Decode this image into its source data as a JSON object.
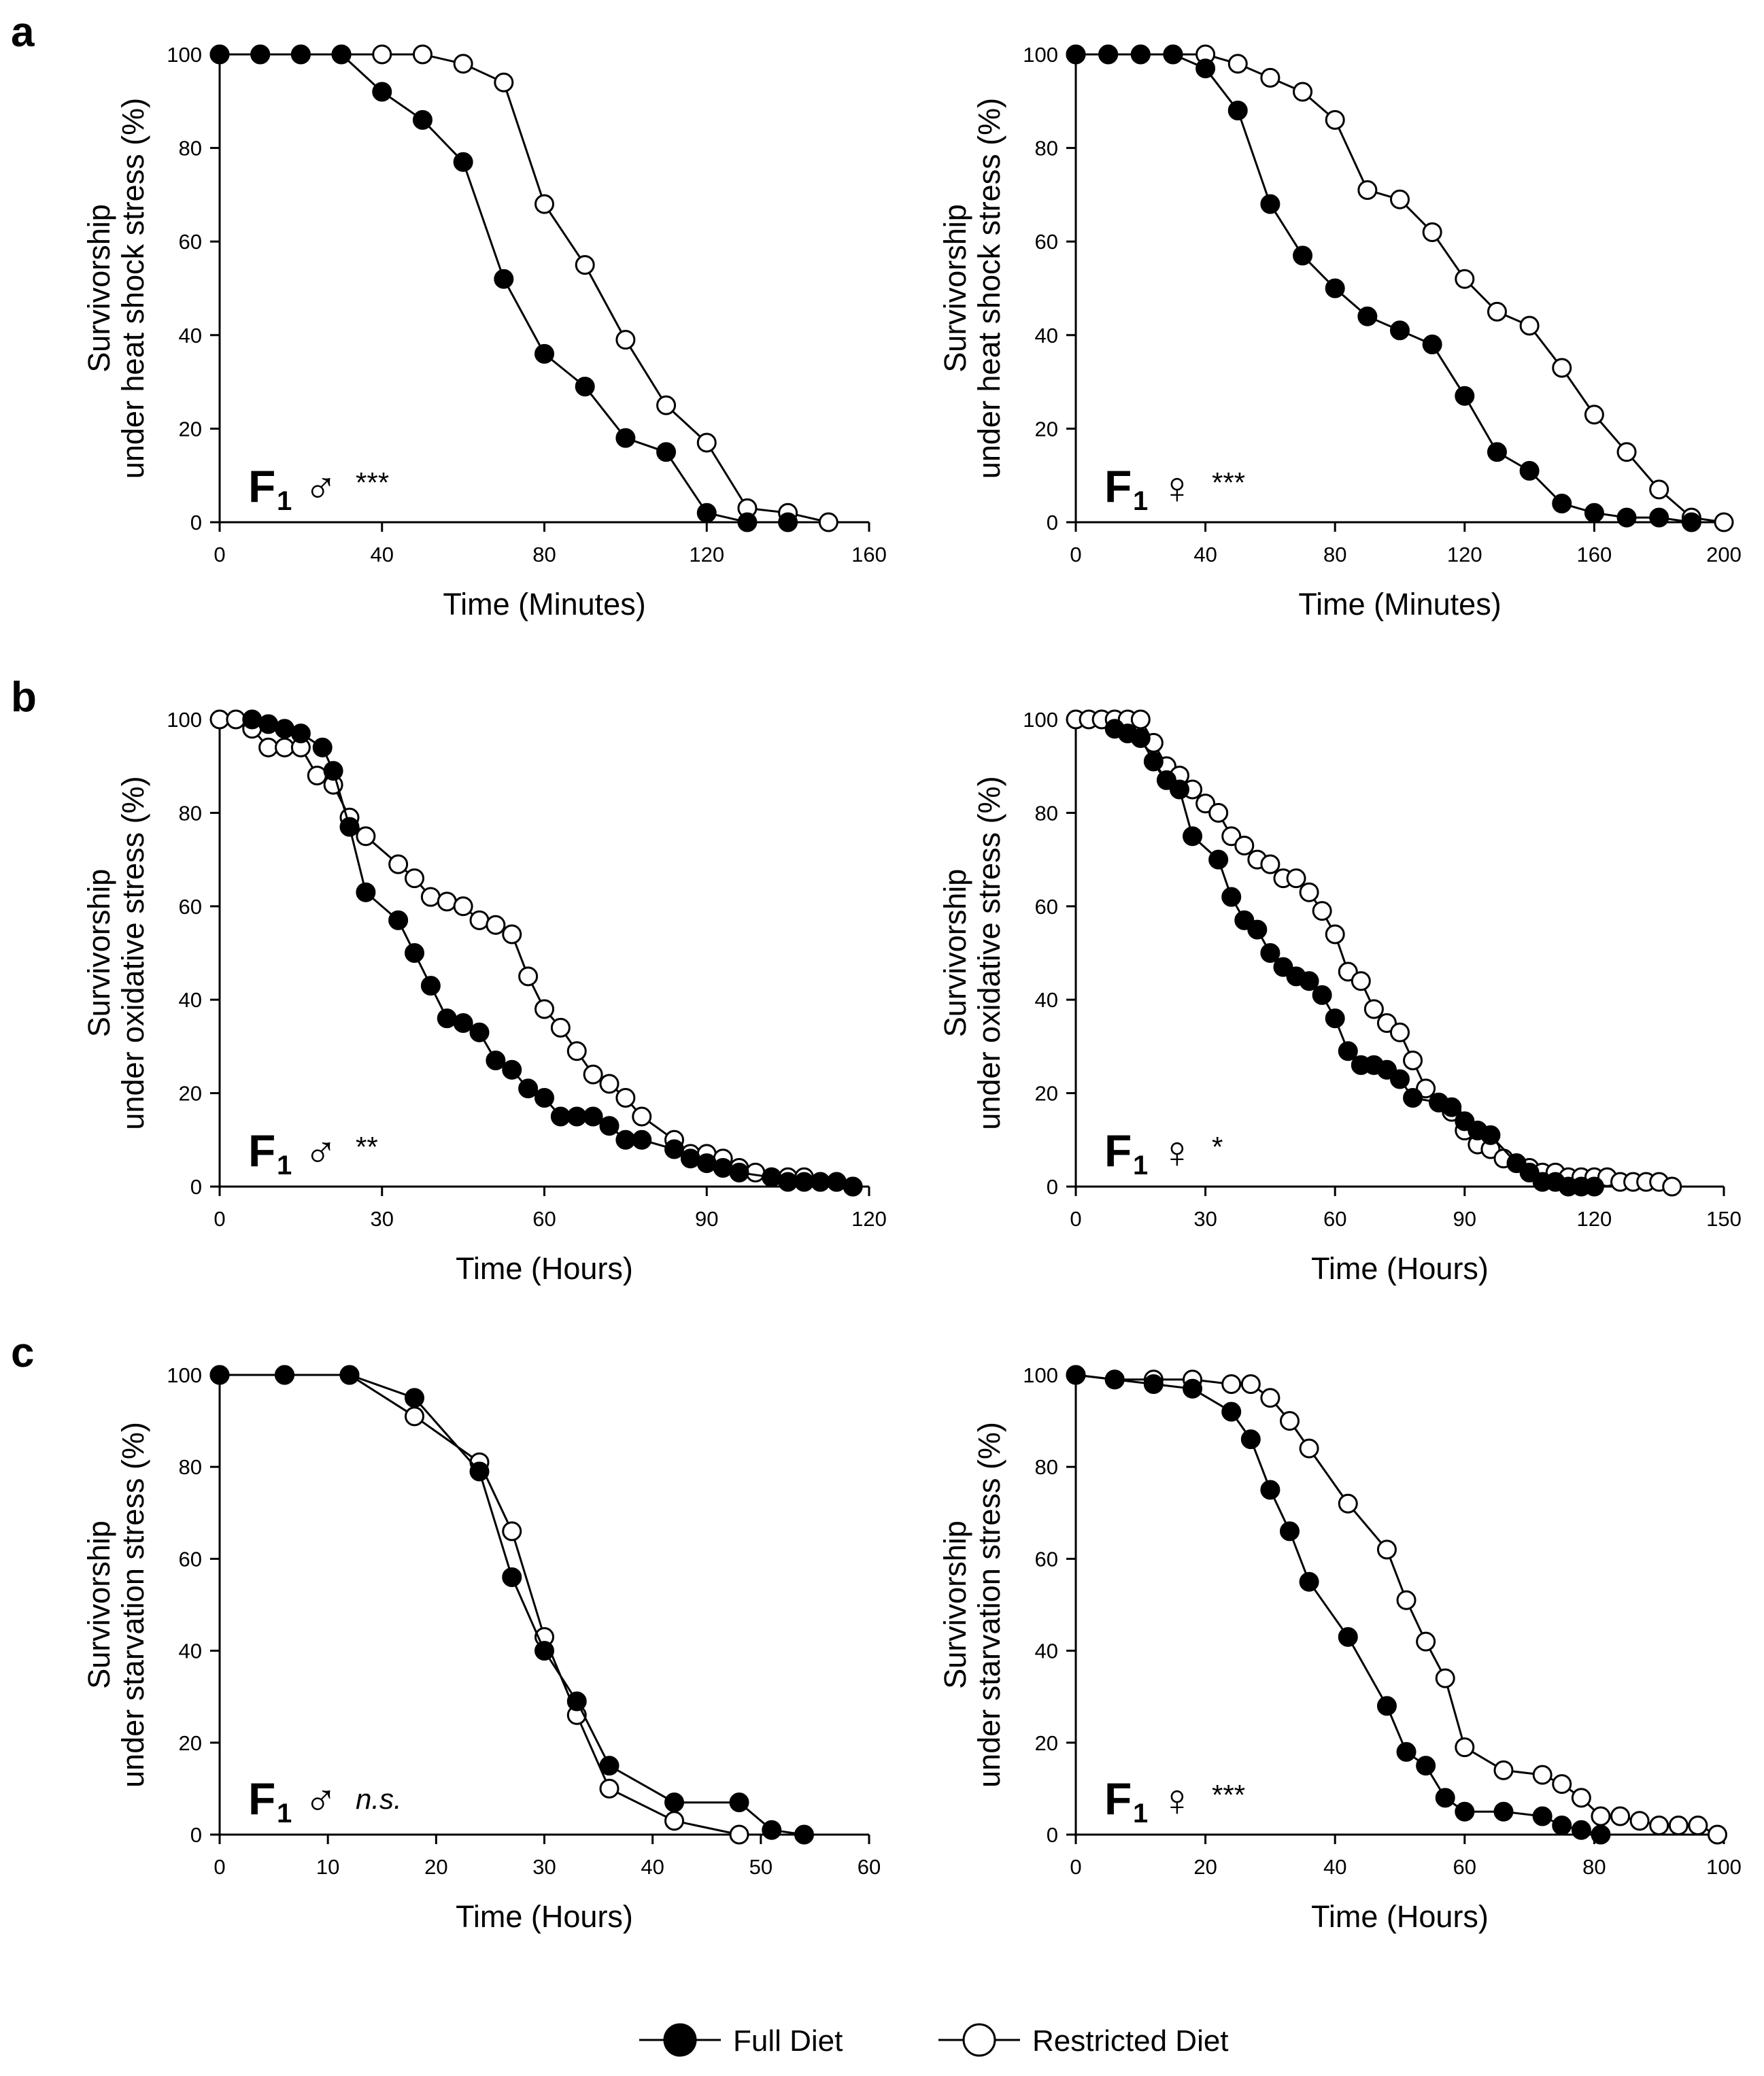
{
  "legend": {
    "full_label": "Full Diet",
    "restricted_label": "Restricted Diet"
  },
  "chart_data": [
    {
      "type": "line",
      "panel_letter": "a",
      "xlabel": "Time (Minutes)",
      "ylabel_line1": "Survivorship",
      "ylabel_line2": "under heat shock stress (%)",
      "xlim": [
        0,
        160
      ],
      "ylim": [
        0,
        100
      ],
      "xticks": [
        "0",
        "40",
        "80",
        "120",
        "160"
      ],
      "yticks": [
        "0",
        "20",
        "40",
        "60",
        "80",
        "100"
      ],
      "grid": false,
      "group_label": "F",
      "group_subscript": "1",
      "sex_symbol": "♂",
      "significance": "***",
      "significance_italic": false,
      "series": [
        {
          "name": "Full Diet",
          "filled": true,
          "x": [
            0,
            10,
            20,
            30,
            40,
            50,
            60,
            70,
            80,
            90,
            100,
            110,
            120,
            130,
            140
          ],
          "y": [
            100,
            100,
            100,
            100,
            92,
            86,
            77,
            52,
            36,
            29,
            18,
            15,
            2,
            0,
            0
          ]
        },
        {
          "name": "Restricted Diet",
          "filled": false,
          "x": [
            0,
            10,
            20,
            30,
            40,
            50,
            60,
            70,
            80,
            90,
            100,
            110,
            120,
            130,
            140,
            150
          ],
          "y": [
            100,
            100,
            100,
            100,
            100,
            100,
            98,
            94,
            68,
            55,
            39,
            25,
            17,
            3,
            2,
            0
          ]
        }
      ]
    },
    {
      "type": "line",
      "panel_letter": "",
      "xlabel": "Time (Minutes)",
      "ylabel_line1": "Survivorship",
      "ylabel_line2": "under heat shock stress (%)",
      "xlim": [
        0,
        200
      ],
      "ylim": [
        0,
        100
      ],
      "xticks": [
        "0",
        "40",
        "80",
        "120",
        "160",
        "200"
      ],
      "yticks": [
        "0",
        "20",
        "40",
        "60",
        "80",
        "100"
      ],
      "grid": false,
      "group_label": "F",
      "group_subscript": "1",
      "sex_symbol": "♀",
      "significance": "***",
      "significance_italic": false,
      "series": [
        {
          "name": "Full Diet",
          "filled": true,
          "x": [
            0,
            10,
            20,
            30,
            40,
            50,
            60,
            70,
            80,
            90,
            100,
            110,
            120,
            130,
            140,
            150,
            160,
            170,
            180,
            190
          ],
          "y": [
            100,
            100,
            100,
            100,
            97,
            88,
            68,
            57,
            50,
            44,
            41,
            38,
            27,
            15,
            11,
            4,
            2,
            1,
            1,
            0
          ]
        },
        {
          "name": "Restricted Diet",
          "filled": false,
          "x": [
            0,
            10,
            20,
            30,
            40,
            50,
            60,
            70,
            80,
            90,
            100,
            110,
            120,
            130,
            140,
            150,
            160,
            170,
            180,
            190,
            200
          ],
          "y": [
            100,
            100,
            100,
            100,
            100,
            98,
            95,
            92,
            86,
            71,
            69,
            62,
            52,
            45,
            42,
            33,
            23,
            15,
            7,
            1,
            0
          ]
        }
      ]
    },
    {
      "type": "line",
      "panel_letter": "b",
      "xlabel": "Time (Hours)",
      "ylabel_line1": "Survivorship",
      "ylabel_line2": "under oxidative stress (%)",
      "xlim": [
        0,
        120
      ],
      "ylim": [
        0,
        100
      ],
      "xticks": [
        "0",
        "30",
        "60",
        "90",
        "120"
      ],
      "yticks": [
        "0",
        "20",
        "40",
        "60",
        "80",
        "100"
      ],
      "grid": false,
      "group_label": "F",
      "group_subscript": "1",
      "sex_symbol": "♂",
      "significance": "**",
      "significance_italic": false,
      "series": [
        {
          "name": "Full Diet",
          "filled": true,
          "x": [
            6,
            9,
            12,
            15,
            19,
            21,
            24,
            27,
            33,
            36,
            39,
            42,
            45,
            48,
            51,
            54,
            57,
            60,
            63,
            66,
            69,
            72,
            75,
            78,
            84,
            87,
            90,
            93,
            96,
            102,
            105,
            108,
            111,
            114,
            117
          ],
          "y": [
            100,
            99,
            98,
            97,
            94,
            89,
            77,
            63,
            57,
            50,
            43,
            36,
            35,
            33,
            27,
            25,
            21,
            19,
            15,
            15,
            15,
            13,
            10,
            10,
            8,
            6,
            5,
            4,
            3,
            2,
            1,
            1,
            1,
            1,
            0
          ]
        },
        {
          "name": "Restricted Diet",
          "filled": false,
          "x": [
            0,
            3,
            6,
            9,
            12,
            15,
            18,
            21,
            24,
            27,
            33,
            36,
            39,
            42,
            45,
            48,
            51,
            54,
            57,
            60,
            63,
            66,
            69,
            72,
            75,
            78,
            84,
            87,
            90,
            93,
            96,
            99,
            102,
            105,
            108,
            111,
            114,
            117
          ],
          "y": [
            100,
            100,
            98,
            94,
            94,
            94,
            88,
            86,
            79,
            75,
            69,
            66,
            62,
            61,
            60,
            57,
            56,
            54,
            45,
            38,
            34,
            29,
            24,
            22,
            19,
            15,
            10,
            7,
            7,
            6,
            4,
            3,
            2,
            2,
            2,
            1,
            1,
            0
          ]
        }
      ]
    },
    {
      "type": "line",
      "panel_letter": "",
      "xlabel": "Time (Hours)",
      "ylabel_line1": "Survivorship",
      "ylabel_line2": "under oxidative stress (%)",
      "xlim": [
        0,
        150
      ],
      "ylim": [
        0,
        100
      ],
      "xticks": [
        "0",
        "30",
        "60",
        "90",
        "120",
        "150"
      ],
      "yticks": [
        "0",
        "20",
        "40",
        "60",
        "80",
        "100"
      ],
      "grid": false,
      "group_label": "F",
      "group_subscript": "1",
      "sex_symbol": "♀",
      "significance": "*",
      "significance_italic": false,
      "series": [
        {
          "name": "Full Diet",
          "filled": true,
          "x": [
            9,
            12,
            15,
            18,
            21,
            24,
            27,
            33,
            36,
            39,
            42,
            45,
            48,
            51,
            54,
            57,
            60,
            63,
            66,
            69,
            72,
            75,
            78,
            84,
            87,
            90,
            93,
            96,
            102,
            105,
            108,
            111,
            114,
            117,
            120
          ],
          "y": [
            98,
            97,
            96,
            91,
            87,
            85,
            75,
            70,
            62,
            57,
            55,
            50,
            47,
            45,
            44,
            41,
            36,
            29,
            26,
            26,
            25,
            23,
            19,
            18,
            17,
            14,
            12,
            11,
            5,
            3,
            1,
            1,
            0,
            0,
            0
          ]
        },
        {
          "name": "Restricted Diet",
          "filled": false,
          "x": [
            0,
            3,
            6,
            9,
            12,
            15,
            18,
            21,
            24,
            27,
            30,
            33,
            36,
            39,
            42,
            45,
            48,
            51,
            54,
            57,
            60,
            63,
            66,
            69,
            72,
            75,
            78,
            81,
            84,
            87,
            90,
            93,
            96,
            99,
            102,
            105,
            108,
            111,
            114,
            117,
            120,
            123,
            126,
            129,
            132,
            135,
            138
          ],
          "y": [
            100,
            100,
            100,
            100,
            100,
            100,
            95,
            90,
            88,
            85,
            82,
            80,
            75,
            73,
            70,
            69,
            66,
            66,
            63,
            59,
            54,
            46,
            44,
            38,
            35,
            33,
            27,
            21,
            18,
            16,
            12,
            9,
            8,
            6,
            5,
            4,
            3,
            3,
            2,
            2,
            2,
            2,
            1,
            1,
            1,
            1,
            0
          ]
        }
      ]
    },
    {
      "type": "line",
      "panel_letter": "c",
      "xlabel": "Time (Hours)",
      "ylabel_line1": "Survivorship",
      "ylabel_line2": "under starvation stress (%)",
      "xlim": [
        0,
        60
      ],
      "ylim": [
        0,
        100
      ],
      "xticks": [
        "0",
        "10",
        "20",
        "30",
        "40",
        "50",
        "60"
      ],
      "yticks": [
        "0",
        "20",
        "40",
        "60",
        "80",
        "100"
      ],
      "grid": false,
      "group_label": "F",
      "group_subscript": "1",
      "sex_symbol": "♂",
      "significance": "n.s.",
      "significance_italic": true,
      "series": [
        {
          "name": "Full Diet",
          "filled": true,
          "x": [
            0,
            6,
            12,
            18,
            24,
            27,
            30,
            33,
            36,
            42,
            48,
            51,
            54
          ],
          "y": [
            100,
            100,
            100,
            95,
            79,
            56,
            40,
            29,
            15,
            7,
            7,
            1,
            0
          ]
        },
        {
          "name": "Restricted Diet",
          "filled": false,
          "x": [
            0,
            6,
            12,
            18,
            24,
            27,
            30,
            33,
            36,
            42,
            48
          ],
          "y": [
            100,
            100,
            100,
            91,
            81,
            66,
            43,
            26,
            10,
            3,
            0
          ]
        }
      ]
    },
    {
      "type": "line",
      "panel_letter": "",
      "xlabel": "Time (Hours)",
      "ylabel_line1": "Survivorship",
      "ylabel_line2": "under starvation stress (%)",
      "xlim": [
        0,
        100
      ],
      "ylim": [
        0,
        100
      ],
      "xticks": [
        "0",
        "20",
        "40",
        "60",
        "80",
        "100"
      ],
      "yticks": [
        "0",
        "20",
        "40",
        "60",
        "80",
        "100"
      ],
      "grid": false,
      "group_label": "F",
      "group_subscript": "1",
      "sex_symbol": "♀",
      "significance": "***",
      "significance_italic": false,
      "series": [
        {
          "name": "Full Diet",
          "filled": true,
          "x": [
            0,
            6,
            12,
            18,
            24,
            27,
            30,
            33,
            36,
            42,
            48,
            51,
            54,
            57,
            60,
            66,
            72,
            75,
            78,
            81
          ],
          "y": [
            100,
            99,
            98,
            97,
            92,
            86,
            75,
            66,
            55,
            43,
            28,
            18,
            15,
            8,
            5,
            5,
            4,
            2,
            1,
            0
          ]
        },
        {
          "name": "Restricted Diet",
          "filled": false,
          "x": [
            0,
            6,
            12,
            18,
            24,
            27,
            30,
            33,
            36,
            42,
            48,
            51,
            54,
            57,
            60,
            66,
            72,
            75,
            78,
            81,
            84,
            87,
            90,
            93,
            96,
            99
          ],
          "y": [
            100,
            99,
            99,
            99,
            98,
            98,
            95,
            90,
            84,
            72,
            62,
            51,
            42,
            34,
            19,
            14,
            13,
            11,
            8,
            4,
            4,
            3,
            2,
            2,
            2,
            0
          ]
        }
      ]
    }
  ]
}
